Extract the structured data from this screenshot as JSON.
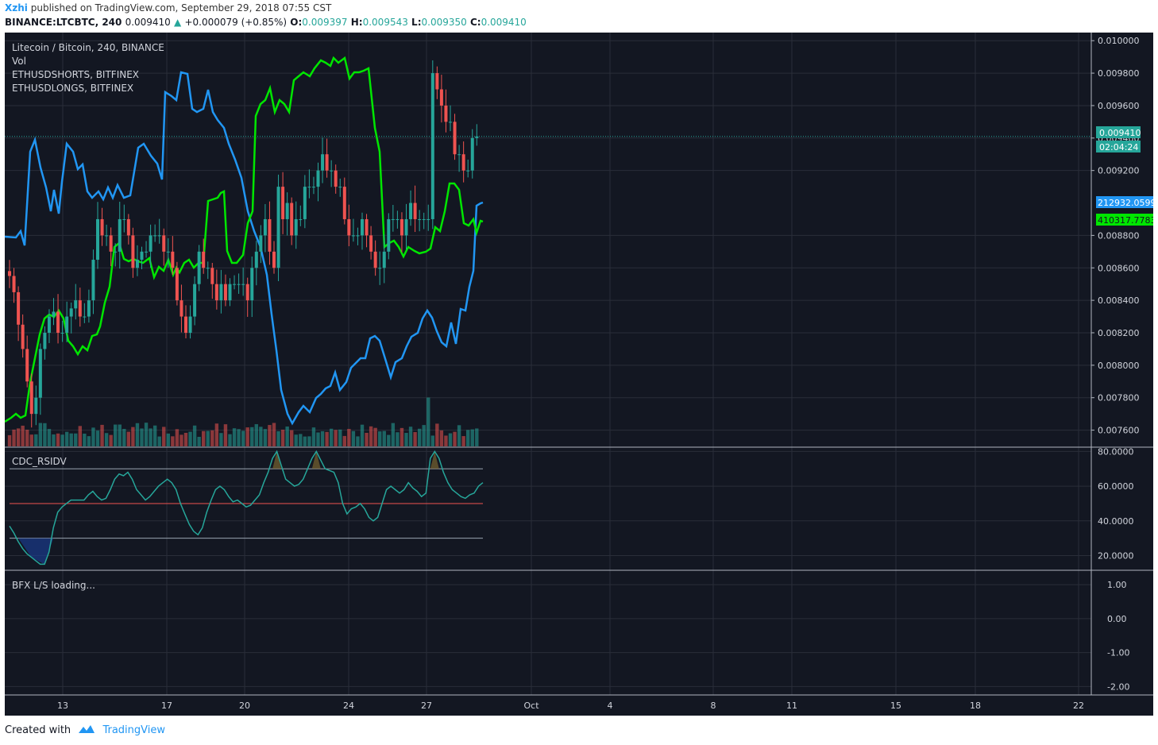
{
  "header": {
    "user": "Xzhi",
    "published": "published on TradingView.com, September 29, 2018 07:55 CST",
    "symbol": "BINANCE:LTCBTC, 240",
    "last": "0.009410",
    "change": "+0.000079 (+0.85%)",
    "open_label": "O:",
    "open": "0.009397",
    "high_label": "H:",
    "high": "0.009543",
    "low_label": "L:",
    "low": "0.009350",
    "close_label": "C:",
    "close": "0.009410"
  },
  "legend": {
    "title": "Litecoin / Bitcoin, 240, BINANCE",
    "vol": "Vol",
    "shorts": "ETHUSDSHORTS, BITFINEX",
    "longs": "ETHUSDLONGS, BITFINEX"
  },
  "labels": {
    "price_tag": "0.009410",
    "countdown": "02:04:24",
    "shorts_tag": "212932.0599",
    "longs_tag": "410317.7783",
    "rsi_title": "CDC_RSIDV",
    "bfx_title": "BFX L/S loading..."
  },
  "footer": {
    "created_with": "Created with",
    "brand": "TradingView"
  },
  "colors": {
    "background": "#131722",
    "up": "#26a69a",
    "down": "#ef5350",
    "shorts": "#2196f3",
    "longs": "#00e600",
    "rsi": "#26a69a"
  },
  "chart_data": [
    {
      "type": "candlestick",
      "title": "Litecoin / Bitcoin, 240, BINANCE",
      "ylim": [
        0.0075,
        0.01005
      ],
      "y_ticks": [
        "0.010000",
        "0.009800",
        "0.009600",
        "0.009400",
        "0.009200",
        "0.008800",
        "0.008600",
        "0.008400",
        "0.008200",
        "0.008000",
        "0.007800",
        "0.007600"
      ],
      "x_ticks": [
        "13",
        "17",
        "20",
        "24",
        "27",
        "Oct",
        "4",
        "8",
        "11",
        "15",
        "18",
        "22"
      ],
      "close_path": [
        0.00855,
        0.00845,
        0.00825,
        0.0081,
        0.0079,
        0.0077,
        0.0078,
        0.0081,
        0.0082,
        0.0083,
        0.00833,
        0.0082,
        0.0082,
        0.0083,
        0.00835,
        0.0084,
        0.0083,
        0.0083,
        0.0084,
        0.00865,
        0.0089,
        0.0088,
        0.0088,
        0.0087,
        0.0087,
        0.0089,
        0.0089,
        0.0088,
        0.0086,
        0.00865,
        0.0087,
        0.0087,
        0.0088,
        0.0088,
        0.0088,
        0.0087,
        0.0087,
        0.0086,
        0.0084,
        0.0083,
        0.0082,
        0.0083,
        0.0085,
        0.0087,
        0.0086,
        0.0086,
        0.0085,
        0.0084,
        0.0085,
        0.0084,
        0.0085,
        0.0085,
        0.0085,
        0.0085,
        0.0084,
        0.0086,
        0.0087,
        0.0088,
        0.0089,
        0.0087,
        0.0086,
        0.0091,
        0.0089,
        0.009,
        0.0088,
        0.0089,
        0.0089,
        0.0091,
        0.0091,
        0.0091,
        0.0092,
        0.0093,
        0.0092,
        0.0092,
        0.0091,
        0.0091,
        0.0089,
        0.0088,
        0.0088,
        0.0088,
        0.0089,
        0.0088,
        0.0087,
        0.0086,
        0.0086,
        0.0087,
        0.0089,
        0.0089,
        0.0089,
        0.0088,
        0.0089,
        0.009,
        0.0089,
        0.0089,
        0.0089,
        0.0089,
        0.0098,
        0.0097,
        0.0096,
        0.0095,
        0.0095,
        0.0093,
        0.0093,
        0.0092,
        0.0092,
        0.0094,
        0.00941
      ],
      "series": [
        {
          "name": "ETHUSDSHORTS, BITFINEX",
          "last": "212932.0599"
        },
        {
          "name": "ETHUSDLONGS, BITFINEX",
          "last": "410317.7783"
        }
      ]
    },
    {
      "type": "line",
      "title": "CDC_RSIDV",
      "ylim": [
        12,
        82
      ],
      "y_ticks": [
        "80.0000",
        "60.0000",
        "40.0000",
        "20.0000"
      ],
      "levels": [
        70,
        50,
        30
      ],
      "values": [
        37,
        33,
        28,
        24,
        21,
        19,
        17,
        15,
        15,
        22,
        36,
        45,
        48,
        50,
        52,
        52,
        52,
        52,
        55,
        57,
        54,
        52,
        53,
        58,
        64,
        67,
        66,
        68,
        64,
        58,
        55,
        52,
        54,
        57,
        60,
        62,
        64,
        62,
        58,
        50,
        44,
        38,
        34,
        32,
        36,
        45,
        52,
        58,
        60,
        58,
        54,
        51,
        52,
        50,
        48,
        49,
        52,
        55,
        62,
        68,
        76,
        80,
        72,
        64,
        62,
        60,
        61,
        64,
        70,
        76,
        80,
        75,
        70,
        69,
        68,
        62,
        50,
        44,
        47,
        48,
        50,
        47,
        42,
        40,
        42,
        50,
        58,
        60,
        58,
        56,
        58,
        62,
        59,
        57,
        54,
        56,
        76,
        80,
        76,
        68,
        62,
        58,
        56,
        54,
        53,
        55,
        56,
        60,
        62
      ]
    },
    {
      "type": "line",
      "title": "BFX L/S loading...",
      "ylim": [
        -2.25,
        1.4
      ],
      "y_ticks": [
        "1.00",
        "0.00",
        "-1.00",
        "-2.00"
      ],
      "values": []
    }
  ]
}
